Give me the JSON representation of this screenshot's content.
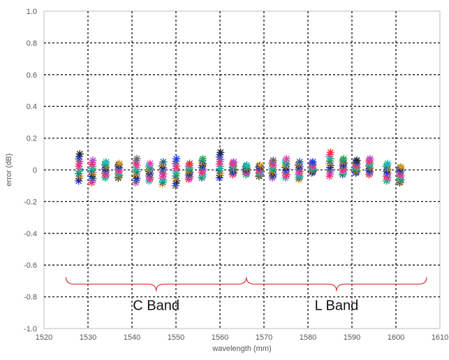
{
  "chart_data": {
    "type": "scatter",
    "title": "",
    "xlabel": "wavelength (mm)",
    "ylabel": "error (dB)",
    "xlim": [
      1520,
      1610
    ],
    "ylim": [
      -1.0,
      1.0
    ],
    "x_ticks": [
      "1520",
      "1530",
      "1540",
      "1550",
      "1560",
      "1570",
      "1580",
      "1590",
      "1600",
      "1610"
    ],
    "y_ticks": [
      "1.0",
      "0.8",
      "0.6",
      "0.4",
      "0.2",
      "0",
      "-0.2",
      "-0.4",
      "-0.6",
      "-0.8",
      "-1.0"
    ],
    "grid": true,
    "marker": "star",
    "series_colors": [
      "#1f3fff",
      "#ff2a2a",
      "#22b14c",
      "#222222",
      "#b44bd8",
      "#1fb8c8",
      "#e0a020",
      "#666666",
      "#ff3bb0",
      "#2060a0"
    ],
    "columns": [
      {
        "x": 1528,
        "min": -0.07,
        "max": 0.1
      },
      {
        "x": 1531,
        "min": -0.08,
        "max": 0.06
      },
      {
        "x": 1534,
        "min": -0.05,
        "max": 0.05
      },
      {
        "x": 1537,
        "min": -0.05,
        "max": 0.04
      },
      {
        "x": 1541,
        "min": -0.08,
        "max": 0.07
      },
      {
        "x": 1544,
        "min": -0.07,
        "max": 0.04
      },
      {
        "x": 1547,
        "min": -0.09,
        "max": 0.05
      },
      {
        "x": 1550,
        "min": -0.1,
        "max": 0.07
      },
      {
        "x": 1553,
        "min": -0.06,
        "max": 0.04
      },
      {
        "x": 1556,
        "min": -0.05,
        "max": 0.07
      },
      {
        "x": 1560,
        "min": -0.05,
        "max": 0.11
      },
      {
        "x": 1563,
        "min": -0.03,
        "max": 0.05
      },
      {
        "x": 1566,
        "min": -0.03,
        "max": 0.03
      },
      {
        "x": 1569,
        "min": -0.04,
        "max": 0.03
      },
      {
        "x": 1572,
        "min": -0.05,
        "max": 0.06
      },
      {
        "x": 1575,
        "min": -0.05,
        "max": 0.07
      },
      {
        "x": 1578,
        "min": -0.06,
        "max": 0.05
      },
      {
        "x": 1581,
        "min": -0.02,
        "max": 0.05
      },
      {
        "x": 1585,
        "min": -0.04,
        "max": 0.11
      },
      {
        "x": 1588,
        "min": -0.03,
        "max": 0.07
      },
      {
        "x": 1591,
        "min": -0.02,
        "max": 0.06
      },
      {
        "x": 1594,
        "min": -0.03,
        "max": 0.07
      },
      {
        "x": 1598,
        "min": -0.07,
        "max": 0.04
      },
      {
        "x": 1601,
        "min": -0.08,
        "max": 0.02
      }
    ],
    "annotations": [
      {
        "text": "C Band",
        "x_start": 1525,
        "x_end": 1566,
        "y": -0.72
      },
      {
        "text": "L Band",
        "x_start": 1566,
        "x_end": 1607,
        "y": -0.72
      }
    ],
    "brace_color": "#e0322e"
  }
}
